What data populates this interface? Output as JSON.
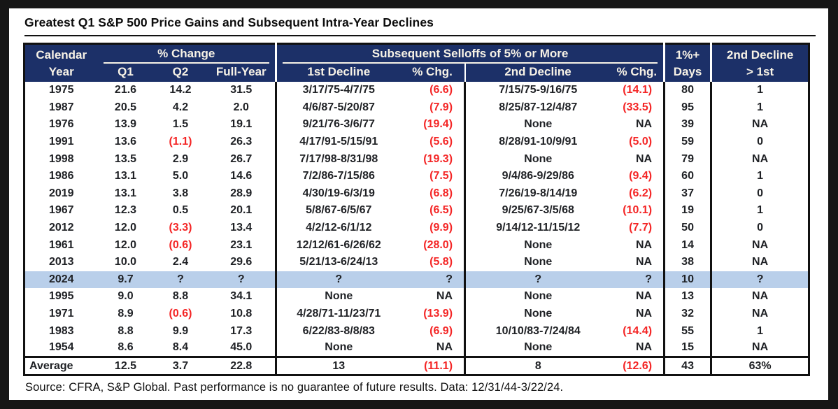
{
  "title": "Greatest Q1 S&P 500 Price Gains and Subsequent Intra-Year Declines",
  "colors": {
    "header_bg": "#1c3068",
    "header_text": "#f7f2e6",
    "highlight_row": "#b9cfea",
    "negative_red": "#f42525",
    "frame": "#161616"
  },
  "table_header": {
    "calendar": "Calendar",
    "year": "Year",
    "pct_change_group": "% Change",
    "q1": "Q1",
    "q2": "Q2",
    "full_year": "Full-Year",
    "selloffs_group": "Subsequent Selloffs of 5% or More",
    "first_decline": "1st Decline",
    "pct_chg_1": "% Chg.",
    "second_decline": "2nd Decline",
    "pct_chg_2": "% Chg.",
    "one_pct_plus": "1%+",
    "days": "Days",
    "second_gt_first_line1": "2nd Decline",
    "second_gt_first_line2": "> 1st"
  },
  "chart_data": {
    "type": "table",
    "title": "Greatest Q1 S&P 500 Price Gains and Subsequent Intra-Year Declines",
    "columns": [
      "Calendar Year",
      "Q1 % Change",
      "Q2 % Change",
      "Full-Year % Change",
      "1st Decline",
      "1st Decline % Chg.",
      "2nd Decline",
      "2nd Decline % Chg.",
      "1%+ Days",
      "2nd Decline > 1st"
    ],
    "highlighted_row_year": "2024",
    "rows": [
      {
        "cells": [
          "1975",
          "21.6",
          "14.2",
          "31.5",
          "3/17/75-4/7/75",
          "(6.6)",
          "7/15/75-9/16/75",
          "(14.1)",
          "80",
          "1"
        ]
      },
      {
        "cells": [
          "1987",
          "20.5",
          "4.2",
          "2.0",
          "4/6/87-5/20/87",
          "(7.9)",
          "8/25/87-12/4/87",
          "(33.5)",
          "95",
          "1"
        ]
      },
      {
        "cells": [
          "1976",
          "13.9",
          "1.5",
          "19.1",
          "9/21/76-3/6/77",
          "(19.4)",
          "None",
          "NA",
          "39",
          "NA"
        ]
      },
      {
        "cells": [
          "1991",
          "13.6",
          "(1.1)",
          "26.3",
          "4/17/91-5/15/91",
          "(5.6)",
          "8/28/91-10/9/91",
          "(5.0)",
          "59",
          "0"
        ]
      },
      {
        "cells": [
          "1998",
          "13.5",
          "2.9",
          "26.7",
          "7/17/98-8/31/98",
          "(19.3)",
          "None",
          "NA",
          "79",
          "NA"
        ]
      },
      {
        "cells": [
          "1986",
          "13.1",
          "5.0",
          "14.6",
          "7/2/86-7/15/86",
          "(7.5)",
          "9/4/86-9/29/86",
          "(9.4)",
          "60",
          "1"
        ]
      },
      {
        "cells": [
          "2019",
          "13.1",
          "3.8",
          "28.9",
          "4/30/19-6/3/19",
          "(6.8)",
          "7/26/19-8/14/19",
          "(6.2)",
          "37",
          "0"
        ]
      },
      {
        "cells": [
          "1967",
          "12.3",
          "0.5",
          "20.1",
          "5/8/67-6/5/67",
          "(6.5)",
          "9/25/67-3/5/68",
          "(10.1)",
          "19",
          "1"
        ]
      },
      {
        "cells": [
          "2012",
          "12.0",
          "(3.3)",
          "13.4",
          "4/2/12-6/1/12",
          "(9.9)",
          "9/14/12-11/15/12",
          "(7.7)",
          "50",
          "0"
        ]
      },
      {
        "cells": [
          "1961",
          "12.0",
          "(0.6)",
          "23.1",
          "12/12/61-6/26/62",
          "(28.0)",
          "None",
          "NA",
          "14",
          "NA"
        ]
      },
      {
        "cells": [
          "2013",
          "10.0",
          "2.4",
          "29.6",
          "5/21/13-6/24/13",
          "(5.8)",
          "None",
          "NA",
          "38",
          "NA"
        ]
      },
      {
        "cells": [
          "2024",
          "9.7",
          "?",
          "?",
          "?",
          "?",
          "?",
          "?",
          "10",
          "?"
        ],
        "highlight": true
      },
      {
        "cells": [
          "1995",
          "9.0",
          "8.8",
          "34.1",
          "None",
          "NA",
          "None",
          "NA",
          "13",
          "NA"
        ]
      },
      {
        "cells": [
          "1971",
          "8.9",
          "(0.6)",
          "10.8",
          "4/28/71-11/23/71",
          "(13.9)",
          "None",
          "NA",
          "32",
          "NA"
        ]
      },
      {
        "cells": [
          "1983",
          "8.8",
          "9.9",
          "17.3",
          "6/22/83-8/8/83",
          "(6.9)",
          "10/10/83-7/24/84",
          "(14.4)",
          "55",
          "1"
        ]
      },
      {
        "cells": [
          "1954",
          "8.6",
          "8.4",
          "45.0",
          "None",
          "NA",
          "None",
          "NA",
          "15",
          "NA"
        ]
      }
    ],
    "average_row": [
      "Average",
      "12.5",
      "3.7",
      "22.8",
      "13",
      "(11.1)",
      "8",
      "(12.6)",
      "43",
      "63%"
    ],
    "source_note": "Source: CFRA, S&P Global. Past performance is no guarantee of future results. Data: 12/31/44-3/22/24."
  }
}
